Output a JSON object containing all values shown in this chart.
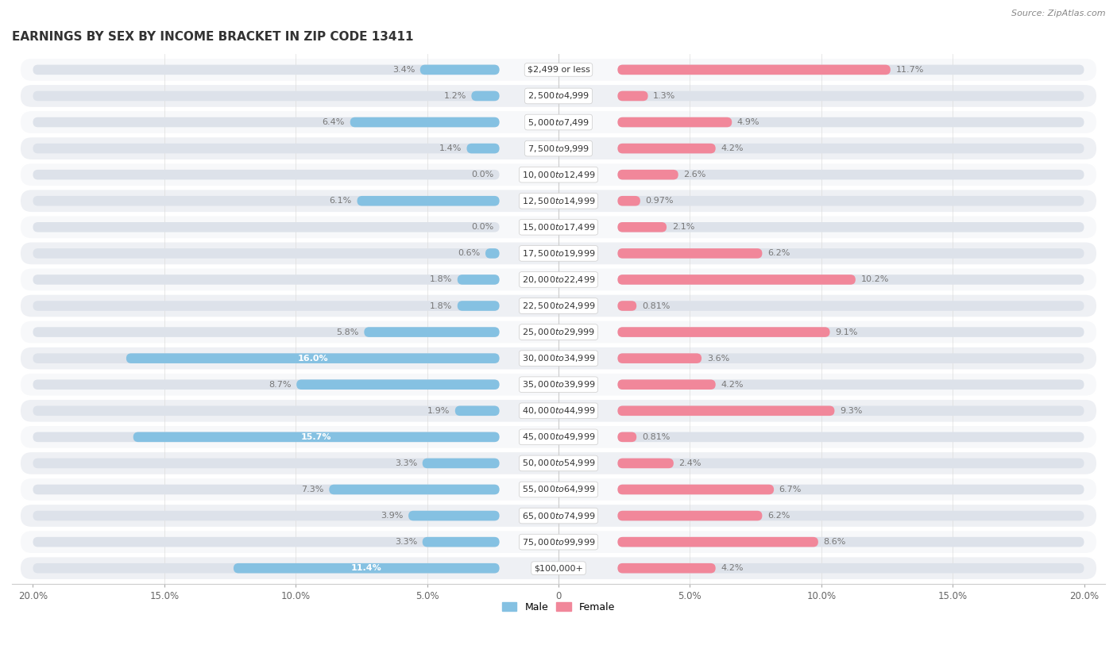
{
  "title": "EARNINGS BY SEX BY INCOME BRACKET IN ZIP CODE 13411",
  "source": "Source: ZipAtlas.com",
  "categories": [
    "$2,499 or less",
    "$2,500 to $4,999",
    "$5,000 to $7,499",
    "$7,500 to $9,999",
    "$10,000 to $12,499",
    "$12,500 to $14,999",
    "$15,000 to $17,499",
    "$17,500 to $19,999",
    "$20,000 to $22,499",
    "$22,500 to $24,999",
    "$25,000 to $29,999",
    "$30,000 to $34,999",
    "$35,000 to $39,999",
    "$40,000 to $44,999",
    "$45,000 to $49,999",
    "$50,000 to $54,999",
    "$55,000 to $64,999",
    "$65,000 to $74,999",
    "$75,000 to $99,999",
    "$100,000+"
  ],
  "male_values": [
    3.4,
    1.2,
    6.4,
    1.4,
    0.0,
    6.1,
    0.0,
    0.6,
    1.8,
    1.8,
    5.8,
    16.0,
    8.7,
    1.9,
    15.7,
    3.3,
    7.3,
    3.9,
    3.3,
    11.4
  ],
  "female_values": [
    11.7,
    1.3,
    4.9,
    4.2,
    2.6,
    0.97,
    2.1,
    6.2,
    10.2,
    0.81,
    9.1,
    3.6,
    4.2,
    9.3,
    0.81,
    2.4,
    6.7,
    6.2,
    8.6,
    4.2
  ],
  "male_color": "#85c1e2",
  "female_color": "#f1879a",
  "axis_max": 20.0,
  "bg_white": "#ffffff",
  "bg_light": "#f0f2f5",
  "bar_track_color": "#dde2ea",
  "row_colors": [
    "#f7f8fa",
    "#eef0f4"
  ]
}
